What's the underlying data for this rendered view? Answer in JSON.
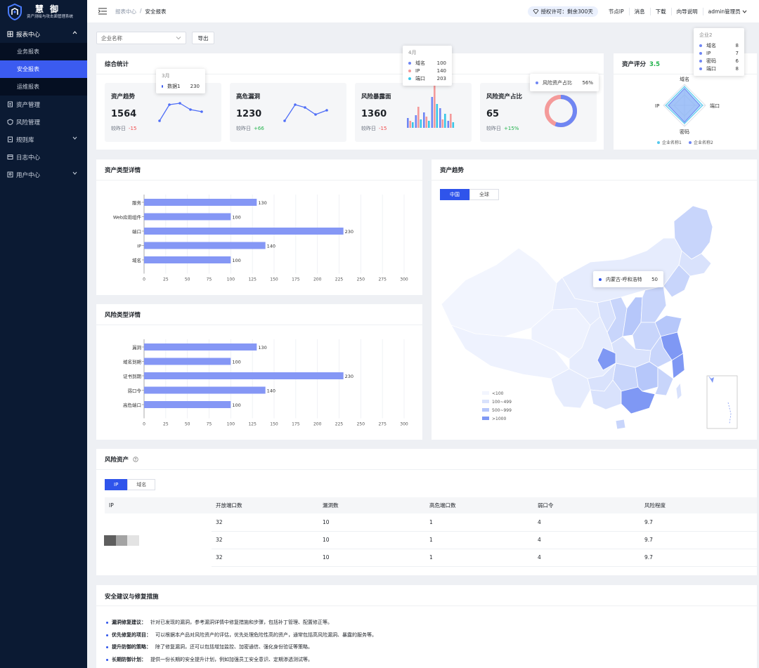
{
  "logo": {
    "title": "慧御",
    "subtitle": "资产测绘与攻击面管理系统"
  },
  "sidebar": {
    "items": [
      {
        "label": "报表中心",
        "icon": "report-icon"
      },
      {
        "label": "业务报表"
      },
      {
        "label": "安全报表"
      },
      {
        "label": "运维报表"
      },
      {
        "label": "资产管理",
        "icon": "asset-icon"
      },
      {
        "label": "风险管理",
        "icon": "risk-icon"
      },
      {
        "label": "规则库",
        "icon": "rule-icon"
      },
      {
        "label": "日志中心",
        "icon": "log-icon"
      },
      {
        "label": "用户中心",
        "icon": "user-icon"
      }
    ]
  },
  "header": {
    "breadcrumb": [
      "报表中心",
      "/",
      "安全报表"
    ],
    "license": "授权许可：剩余300天",
    "links": [
      "节点IP",
      "消息",
      "下载",
      "向导说明",
      "admin管理员"
    ]
  },
  "filter": {
    "placeholder": "企业名称",
    "export_label": "导出"
  },
  "summary": {
    "title": "综合统计",
    "cards": [
      {
        "title": "资产趋势",
        "value": "1564",
        "cmp_label": "较昨日",
        "delta": "-15"
      },
      {
        "title": "高危漏洞",
        "value": "1230",
        "cmp_label": "较昨日",
        "delta": "+66"
      },
      {
        "title": "风险暴露面",
        "value": "1360",
        "cmp_label": "较昨日",
        "delta": "-15"
      },
      {
        "title": "风险资产占比",
        "value": "65",
        "cmp_label": "较昨日",
        "delta": "+15%"
      }
    ],
    "tooltip1": {
      "head": "3月",
      "rows": [
        {
          "name": "数据1",
          "value": "230"
        }
      ]
    },
    "tooltip2": {
      "head": "4月",
      "rows": [
        {
          "name": "域名",
          "value": "100"
        },
        {
          "name": "IP",
          "value": "140"
        },
        {
          "name": "端口",
          "value": "203"
        }
      ]
    },
    "tooltip3": {
      "rows": [
        {
          "name": "风险资产占比",
          "value": "56%"
        }
      ]
    },
    "ratio": 0.56
  },
  "score": {
    "title": "资产评分",
    "value": "3.5",
    "axes": [
      "域名",
      "端口",
      "密码",
      "IP"
    ],
    "legend": [
      "企业名称1",
      "企业名称2"
    ],
    "tooltip": {
      "head": "企业2",
      "rows": [
        {
          "name": "域名",
          "value": "8"
        },
        {
          "name": "IP",
          "value": "7"
        },
        {
          "name": "密码",
          "value": "6"
        },
        {
          "name": "端口",
          "value": "8"
        }
      ]
    }
  },
  "colors": {
    "accent": "#2f54eb",
    "bar": "#8597f5",
    "neg": "#f04a4a",
    "pos": "#22b24c"
  },
  "chart_data": [
    {
      "type": "bar",
      "title": "资产类型详情",
      "categories": [
        "服务",
        "Web应用组件",
        "端口",
        "IP",
        "域名"
      ],
      "values": [
        130,
        100,
        230,
        140,
        100
      ],
      "xlim": [
        0,
        300
      ],
      "ticks": [
        0,
        25,
        50,
        75,
        100,
        125,
        150,
        175,
        200,
        225,
        250,
        275,
        300
      ]
    },
    {
      "type": "bar",
      "title": "风险类型详情",
      "categories": [
        "漏洞",
        "域名到期",
        "证书到期",
        "弱口令",
        "高危端口"
      ],
      "values": [
        130,
        100,
        230,
        140,
        100
      ],
      "xlim": [
        0,
        300
      ],
      "ticks": [
        0,
        25,
        50,
        75,
        100,
        125,
        150,
        175,
        200,
        225,
        250,
        275,
        300
      ]
    }
  ],
  "map": {
    "title": "资产趋势",
    "tabs": [
      "中国",
      "全球"
    ],
    "tooltip": {
      "name": "内蒙古-呼和浩特",
      "value": "50"
    },
    "legend": [
      "<100",
      "100~499",
      "500~999",
      ">1000"
    ]
  },
  "risk_assets": {
    "title": "风险资产",
    "tabs": [
      "IP",
      "域名"
    ],
    "columns": [
      "IP",
      "开放端口数",
      "漏洞数",
      "高危端口数",
      "弱口令",
      "风险程度"
    ],
    "rows": [
      [
        "",
        "32",
        "10",
        "1",
        "4",
        "9.7"
      ],
      [
        "",
        "32",
        "10",
        "1",
        "4",
        "9.7"
      ],
      [
        "",
        "32",
        "10",
        "1",
        "4",
        "9.7"
      ]
    ]
  },
  "advice": {
    "title": "安全建议与修复措施",
    "items": [
      {
        "k": "漏洞修复建议：",
        "v": "针对已发现的漏洞，参考漏洞详情中修复措施和步骤，包括补丁管理、配置修正等。"
      },
      {
        "k": "优先修复的项目：",
        "v": "可以根据本产品对风险资产的评估，优先处理危险性高的资产，通常包括高风险漏洞、暴露的服务等。"
      },
      {
        "k": "提升防御的策略：",
        "v": "除了修复漏洞，还可以包括增加监控、加密通信、强化身份验证等策略。"
      },
      {
        "k": "长期防御计划：",
        "v": "提供一份长期的安全提升计划，例如加强员工安全意识、定期渗透测试等。"
      }
    ]
  }
}
